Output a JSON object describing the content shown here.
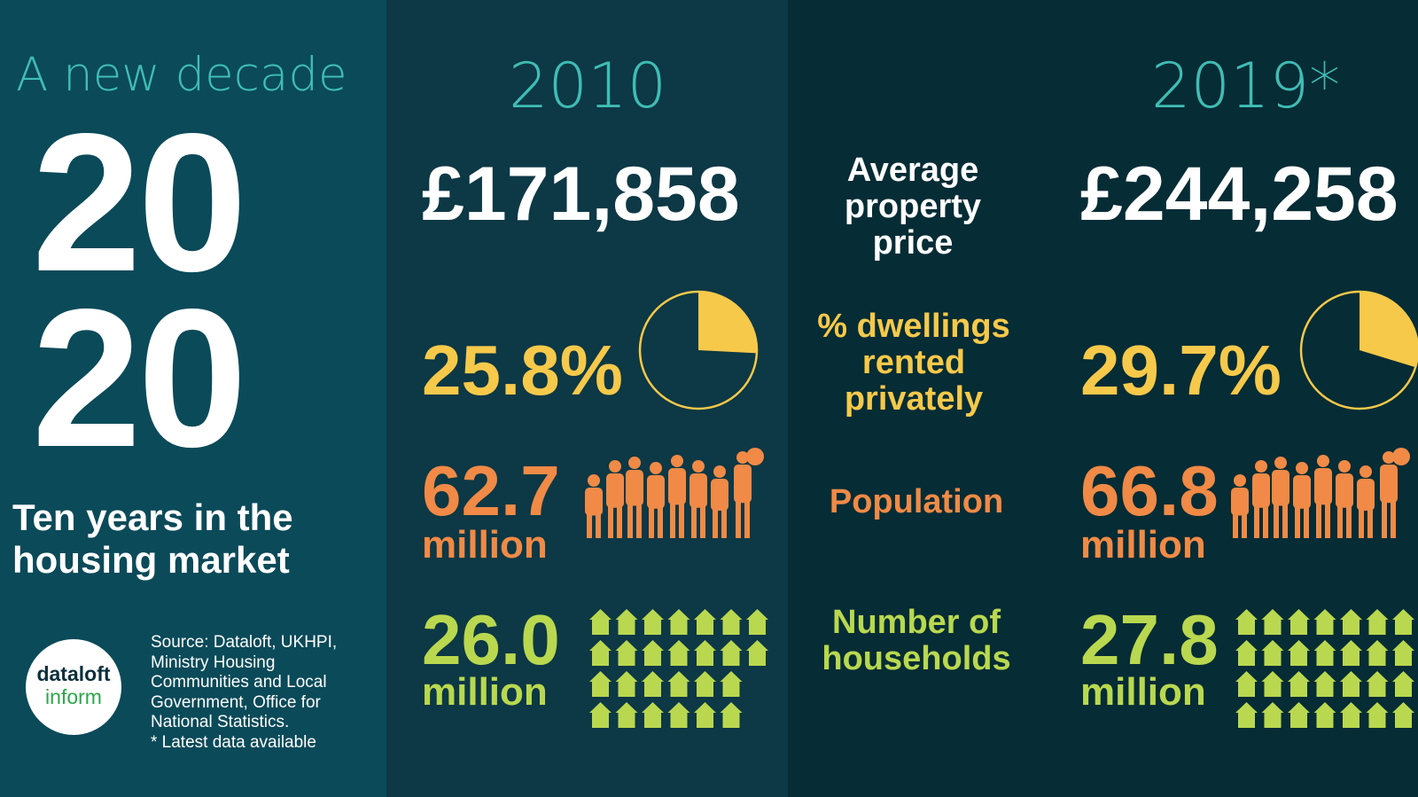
{
  "colors": {
    "left_bg": "#0b4a59",
    "mid_bg": "#0d3845",
    "right_bg": "#062c35",
    "teal": "#3fbdb5",
    "yellow": "#f6c94a",
    "orange": "#f08a46",
    "green": "#b9d84f",
    "logo_green": "#2aa84a"
  },
  "left": {
    "subtitle": "A new decade",
    "year_top": "20",
    "year_bottom": "20",
    "tagline_line1": "Ten years in the",
    "tagline_line2": "housing market",
    "logo_line1": "dataloft",
    "logo_line2": "inform",
    "source_lines": [
      "Source: Dataloft, UKHPI,",
      "Ministry Housing",
      "Communities and Local",
      "Government, Office for",
      "National Statistics.",
      "* Latest data available"
    ]
  },
  "col2010": {
    "year": "2010",
    "price": "£171,858",
    "rented_pct": "25.8%",
    "rented_fraction": 0.258,
    "population": "62.7",
    "population_unit": "million",
    "households": "26.0",
    "households_unit": "million"
  },
  "col2019": {
    "year": "2019*",
    "price": "£244,258",
    "rented_pct": "29.7%",
    "rented_fraction": 0.297,
    "population": "66.8",
    "population_unit": "million",
    "households": "27.8",
    "households_unit": "million"
  },
  "labels": {
    "price": "Average property price",
    "rented": "% dwellings rented privately",
    "population": "Population",
    "households": "Number of households"
  },
  "icons": {
    "people": "people-group-icon",
    "houses": "house-grid-icon",
    "pie": "pie-chart-icon"
  }
}
